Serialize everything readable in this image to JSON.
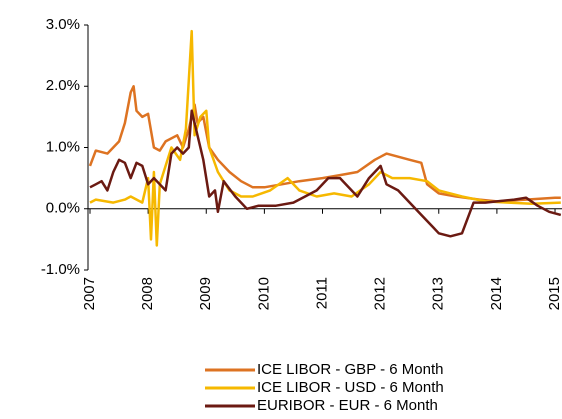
{
  "chart_data": {
    "type": "line",
    "xlim": [
      2007,
      2015.12
    ],
    "xticks": [
      2007,
      2008,
      2009,
      2010,
      2011,
      2012,
      2013,
      2014,
      2015
    ],
    "ylim": [
      -1,
      3
    ],
    "yticks": [
      {
        "value": -1,
        "label": "-1.0%"
      },
      {
        "value": 0,
        "label": "0.0%"
      },
      {
        "value": 1,
        "label": "1.0%"
      },
      {
        "value": 2,
        "label": "2.0%"
      },
      {
        "value": 3,
        "label": "3.0%"
      }
    ],
    "series": [
      {
        "name": "ICE LIBOR - GBP - 6 Month",
        "color": "#dd7322",
        "x": [
          2007.0,
          2007.1,
          2007.3,
          2007.5,
          2007.6,
          2007.7,
          2007.75,
          2007.8,
          2007.9,
          2008.0,
          2008.1,
          2008.2,
          2008.3,
          2008.5,
          2008.6,
          2008.7,
          2008.75,
          2008.8,
          2008.85,
          2008.95,
          2009.05,
          2009.2,
          2009.4,
          2009.6,
          2009.8,
          2010.0,
          2010.3,
          2010.6,
          2011.0,
          2011.3,
          2011.6,
          2011.9,
          2012.1,
          2012.3,
          2012.5,
          2012.7,
          2012.8,
          2013.0,
          2013.3,
          2013.7,
          2014.0,
          2014.5,
          2015.0,
          2015.1
        ],
        "values": [
          0.7,
          0.95,
          0.9,
          1.1,
          1.4,
          1.9,
          2.0,
          1.6,
          1.5,
          1.55,
          1.0,
          0.95,
          1.1,
          1.2,
          1.0,
          1.3,
          1.5,
          1.7,
          1.4,
          1.5,
          1.0,
          0.8,
          0.6,
          0.45,
          0.35,
          0.35,
          0.4,
          0.45,
          0.5,
          0.55,
          0.6,
          0.8,
          0.9,
          0.85,
          0.8,
          0.75,
          0.4,
          0.25,
          0.2,
          0.15,
          0.12,
          0.15,
          0.18,
          0.18
        ]
      },
      {
        "name": "ICE LIBOR - USD - 6 Month",
        "color": "#f6b800",
        "x": [
          2007.0,
          2007.1,
          2007.4,
          2007.6,
          2007.7,
          2007.9,
          2008.0,
          2008.05,
          2008.1,
          2008.15,
          2008.2,
          2008.3,
          2008.4,
          2008.55,
          2008.65,
          2008.75,
          2008.8,
          2008.9,
          2009.0,
          2009.05,
          2009.2,
          2009.4,
          2009.6,
          2009.8,
          2010.1,
          2010.4,
          2010.6,
          2010.9,
          2011.2,
          2011.5,
          2011.8,
          2012.0,
          2012.2,
          2012.5,
          2012.8,
          2013.0,
          2013.4,
          2013.8,
          2014.2,
          2014.6,
          2015.1
        ],
        "values": [
          0.1,
          0.15,
          0.1,
          0.15,
          0.2,
          0.1,
          0.5,
          -0.5,
          0.6,
          -0.6,
          0.4,
          0.7,
          1.0,
          0.8,
          1.3,
          2.9,
          1.2,
          1.5,
          1.6,
          1.0,
          0.6,
          0.3,
          0.2,
          0.2,
          0.3,
          0.5,
          0.3,
          0.2,
          0.25,
          0.2,
          0.4,
          0.6,
          0.5,
          0.5,
          0.45,
          0.3,
          0.2,
          0.12,
          0.1,
          0.08,
          0.1
        ]
      },
      {
        "name": "EURIBOR - EUR - 6 Month",
        "color": "#6b1a12",
        "x": [
          2007.0,
          2007.1,
          2007.2,
          2007.3,
          2007.4,
          2007.5,
          2007.6,
          2007.7,
          2007.8,
          2007.9,
          2008.0,
          2008.1,
          2008.2,
          2008.3,
          2008.4,
          2008.5,
          2008.6,
          2008.7,
          2008.75,
          2008.85,
          2008.95,
          2009.05,
          2009.15,
          2009.2,
          2009.3,
          2009.5,
          2009.7,
          2009.9,
          2010.2,
          2010.5,
          2010.7,
          2010.9,
          2011.1,
          2011.3,
          2011.5,
          2011.6,
          2011.8,
          2012.0,
          2012.1,
          2012.3,
          2012.5,
          2012.7,
          2012.9,
          2013.0,
          2013.2,
          2013.4,
          2013.6,
          2013.8,
          2014.0,
          2014.3,
          2014.5,
          2014.7,
          2014.9,
          2015.1
        ],
        "values": [
          0.35,
          0.4,
          0.45,
          0.3,
          0.6,
          0.8,
          0.75,
          0.5,
          0.75,
          0.7,
          0.4,
          0.5,
          0.4,
          0.3,
          0.9,
          1.0,
          0.9,
          1.0,
          1.6,
          1.2,
          0.8,
          0.2,
          0.3,
          -0.05,
          0.45,
          0.2,
          0.0,
          0.05,
          0.05,
          0.1,
          0.2,
          0.3,
          0.5,
          0.5,
          0.3,
          0.2,
          0.5,
          0.7,
          0.4,
          0.3,
          0.1,
          -0.1,
          -0.3,
          -0.4,
          -0.45,
          -0.4,
          0.1,
          0.1,
          0.12,
          0.15,
          0.18,
          0.05,
          -0.05,
          -0.1
        ]
      }
    ]
  }
}
